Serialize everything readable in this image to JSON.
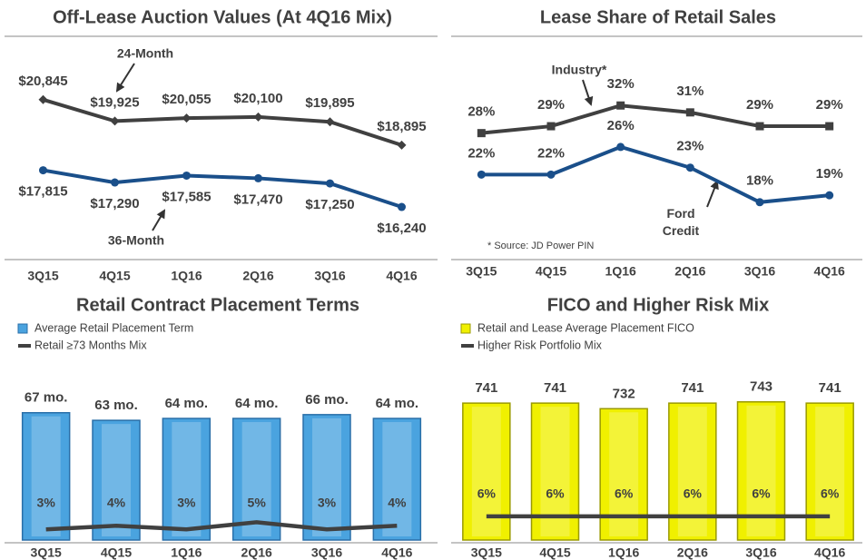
{
  "chart_data": [
    {
      "type": "line",
      "title": "Off-Lease Auction Values (At 4Q16 Mix)",
      "categories": [
        "3Q15",
        "4Q15",
        "1Q16",
        "2Q16",
        "3Q16",
        "4Q16"
      ],
      "ylim": [
        15500,
        21500
      ],
      "series": [
        {
          "name": "24-Month",
          "color": "#404040",
          "values": [
            20845,
            19925,
            20055,
            20100,
            19895,
            18895
          ],
          "value_labels": [
            "$20,845",
            "$19,925",
            "$20,055",
            "$20,100",
            "$19,895",
            "$18,895"
          ]
        },
        {
          "name": "36-Month",
          "color": "#1a4f8a",
          "values": [
            17815,
            17290,
            17585,
            17470,
            17250,
            16240
          ],
          "value_labels": [
            "$17,815",
            "$17,290",
            "$17,585",
            "$17,470",
            "$17,250",
            "$16,240"
          ]
        }
      ]
    },
    {
      "type": "line",
      "title": "Lease Share of Retail Sales",
      "categories": [
        "3Q15",
        "4Q15",
        "1Q16",
        "2Q16",
        "3Q16",
        "4Q16"
      ],
      "ylim": [
        16,
        34
      ],
      "note": "* Source: JD Power PIN",
      "series": [
        {
          "name": "Industry*",
          "color": "#404040",
          "values": [
            28,
            29,
            32,
            31,
            29,
            29
          ],
          "value_labels": [
            "28%",
            "29%",
            "32%",
            "31%",
            "29%",
            "29%"
          ]
        },
        {
          "name": "Ford Credit",
          "color": "#1a4f8a",
          "values": [
            22,
            22,
            26,
            23,
            18,
            19
          ],
          "value_labels": [
            "22%",
            "22%",
            "26%",
            "23%",
            "18%",
            "19%"
          ]
        }
      ]
    },
    {
      "type": "bar",
      "title": "Retail Contract Placement Terms",
      "categories": [
        "3Q15",
        "4Q15",
        "1Q16",
        "2Q16",
        "3Q16",
        "4Q16"
      ],
      "ylim": [
        0,
        75
      ],
      "y2lim": [
        0,
        40
      ],
      "series": [
        {
          "name": "Average Retail Placement Term",
          "color": "#4aa3df",
          "values": [
            67,
            63,
            64,
            64,
            66,
            64
          ],
          "value_labels": [
            "67 mo.",
            "63 mo.",
            "64 mo.",
            "64 mo.",
            "66 mo.",
            "64 mo."
          ]
        },
        {
          "name": "Retail ≥73 Months Mix",
          "color": "#404040",
          "type": "line",
          "axis": "y2",
          "values": [
            3,
            4,
            3,
            5,
            3,
            4
          ],
          "value_labels": [
            "3%",
            "4%",
            "3%",
            "5%",
            "3%",
            "4%"
          ]
        }
      ]
    },
    {
      "type": "bar",
      "title": "FICO and Higher Risk Mix",
      "categories": [
        "3Q15",
        "4Q15",
        "1Q16",
        "2Q16",
        "3Q16",
        "4Q16"
      ],
      "ylim": [
        520,
        750
      ],
      "y2lim": [
        0,
        36
      ],
      "series": [
        {
          "name": "Retail and Lease Average Placement FICO",
          "color": "#f0f000",
          "values": [
            741,
            741,
            732,
            741,
            743,
            741
          ]
        },
        {
          "name": "Higher Risk Portfolio Mix",
          "color": "#404040",
          "type": "line",
          "axis": "y2",
          "values": [
            6,
            6,
            6,
            6,
            6,
            6
          ],
          "value_labels": [
            "6%",
            "6%",
            "6%",
            "6%",
            "6%",
            "6%"
          ]
        }
      ]
    }
  ]
}
